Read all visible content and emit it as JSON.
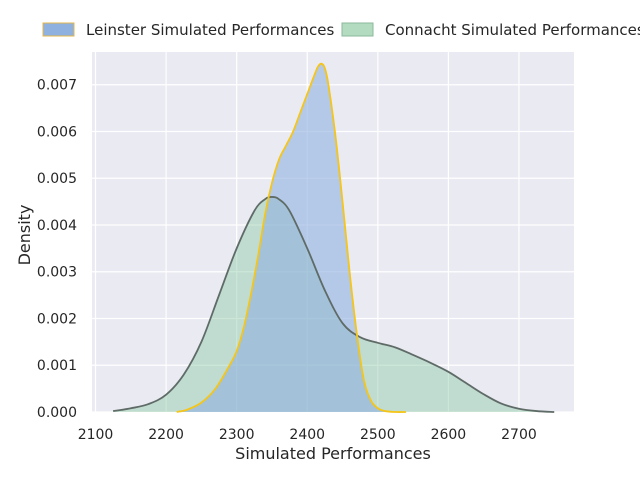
{
  "chart_data": {
    "type": "area",
    "title": "",
    "xlabel": "Simulated Performances",
    "ylabel": "Density",
    "xlim": [
      2095,
      2778
    ],
    "ylim": [
      0,
      0.0077
    ],
    "xticks": [
      2100,
      2200,
      2300,
      2400,
      2500,
      2600,
      2700
    ],
    "xtick_labels": [
      "2100",
      "2200",
      "2300",
      "2400",
      "2500",
      "2600",
      "2700"
    ],
    "yticks": [
      0,
      0.001,
      0.002,
      0.003,
      0.004,
      0.005,
      0.006,
      0.007
    ],
    "ytick_labels": [
      "0.000",
      "0.001",
      "0.002",
      "0.003",
      "0.004",
      "0.005",
      "0.006",
      "0.007"
    ],
    "grid": true,
    "legend_position": "top",
    "series": [
      {
        "name": "Leinster Simulated Performances",
        "fill": "#8fb1df",
        "fill_opacity": 0.6,
        "line": "#f5c518",
        "x": [
          2215,
          2230,
          2250,
          2270,
          2290,
          2300,
          2310,
          2320,
          2330,
          2340,
          2350,
          2360,
          2370,
          2380,
          2390,
          2400,
          2410,
          2415,
          2420,
          2425,
          2430,
          2440,
          2450,
          2460,
          2470,
          2480,
          2490,
          2500,
          2510,
          2525,
          2540
        ],
        "y": [
          0.0,
          5e-05,
          0.0002,
          0.0005,
          0.001,
          0.0013,
          0.0018,
          0.0025,
          0.0033,
          0.0042,
          0.0049,
          0.0054,
          0.0057,
          0.006,
          0.0064,
          0.0068,
          0.0072,
          0.00738,
          0.00745,
          0.00735,
          0.007,
          0.0059,
          0.0045,
          0.003,
          0.0017,
          0.0007,
          0.00025,
          8e-05,
          2e-05,
          0.0,
          0.0
        ]
      },
      {
        "name": "Connacht Simulated Performances",
        "fill": "#8fc9a6",
        "fill_opacity": 0.45,
        "line": "#5f6b66",
        "x": [
          2125,
          2150,
          2175,
          2200,
          2225,
          2250,
          2275,
          2300,
          2325,
          2340,
          2350,
          2360,
          2375,
          2400,
          2425,
          2450,
          2475,
          2500,
          2525,
          2550,
          2575,
          2600,
          2625,
          2650,
          2675,
          2700,
          2725,
          2750
        ],
        "y": [
          2e-05,
          8e-05,
          0.00017,
          0.00037,
          0.0008,
          0.0015,
          0.0025,
          0.0035,
          0.0043,
          0.00455,
          0.0046,
          0.00455,
          0.0043,
          0.0035,
          0.0026,
          0.0019,
          0.0016,
          0.00148,
          0.00138,
          0.00122,
          0.00105,
          0.00086,
          0.00062,
          0.00038,
          0.00018,
          7e-05,
          2e-05,
          0.0
        ]
      }
    ]
  },
  "colors": {
    "plot_background": "#eaeaf2",
    "grid": "#ffffff",
    "text": "#262626"
  }
}
